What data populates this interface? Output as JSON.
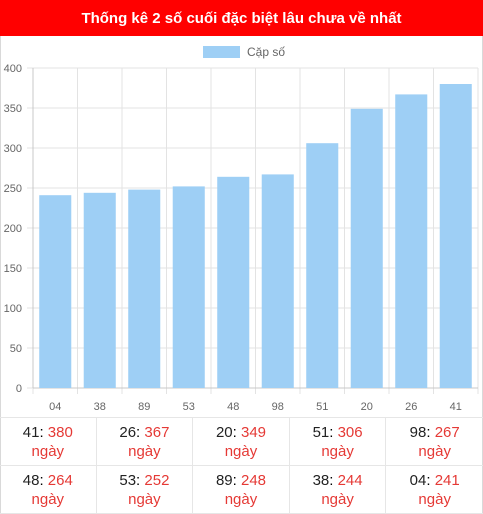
{
  "header": {
    "title": "Thống kê 2 số cuối đặc biệt lâu chưa về nhất"
  },
  "colors": {
    "header_bg": "#ff0000",
    "bar": "#9ecff5",
    "value_text": "#e53935"
  },
  "chart_data": {
    "type": "bar",
    "title": "Thống kê 2 số cuối đặc biệt lâu chưa về nhất",
    "categories": [
      "04",
      "38",
      "89",
      "53",
      "48",
      "98",
      "51",
      "20",
      "26",
      "41"
    ],
    "series": [
      {
        "name": "Cặp số",
        "values": [
          241,
          244,
          248,
          252,
          264,
          267,
          306,
          349,
          367,
          380
        ]
      }
    ],
    "ylim": [
      0,
      400
    ],
    "yticks": [
      "0",
      "50",
      "100",
      "150",
      "200",
      "250",
      "300",
      "350",
      "400"
    ],
    "grid": true,
    "legend": "top-center"
  },
  "stats": {
    "unit": "ngày",
    "rows": [
      [
        {
          "num": "41",
          "days": "380"
        },
        {
          "num": "26",
          "days": "367"
        },
        {
          "num": "20",
          "days": "349"
        },
        {
          "num": "51",
          "days": "306"
        },
        {
          "num": "98",
          "days": "267"
        }
      ],
      [
        {
          "num": "48",
          "days": "264"
        },
        {
          "num": "53",
          "days": "252"
        },
        {
          "num": "89",
          "days": "248"
        },
        {
          "num": "38",
          "days": "244"
        },
        {
          "num": "04",
          "days": "241"
        }
      ]
    ]
  }
}
